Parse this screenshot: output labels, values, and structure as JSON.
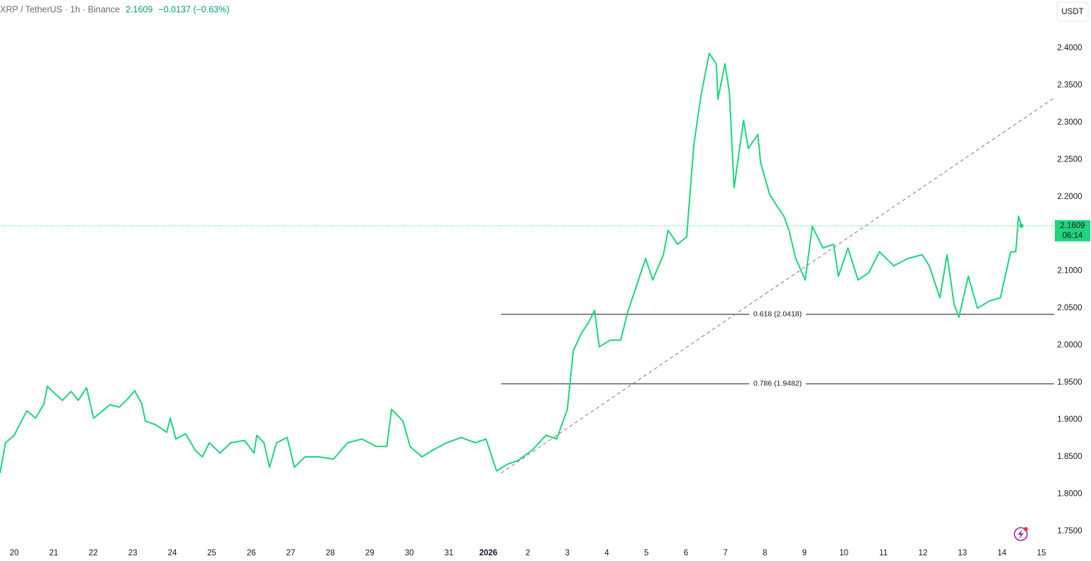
{
  "chart_data": {
    "type": "line",
    "title": "XRP / TetherUS · 1h · Binance",
    "last_price": 2.1609,
    "change": "−0.0137 (−0.63%)",
    "countdown": "06:14",
    "currency": "USDT",
    "xlim": [
      -0.36,
      26.32
    ],
    "ylim": [
      1.7308,
      2.4648
    ],
    "xticks": [
      {
        "value": 0,
        "label": "20"
      },
      {
        "value": 1,
        "label": "21"
      },
      {
        "value": 2,
        "label": "22"
      },
      {
        "value": 3,
        "label": "23"
      },
      {
        "value": 4,
        "label": "24"
      },
      {
        "value": 5,
        "label": "25"
      },
      {
        "value": 6,
        "label": "26"
      },
      {
        "value": 7,
        "label": "27"
      },
      {
        "value": 8,
        "label": "28"
      },
      {
        "value": 9,
        "label": "29"
      },
      {
        "value": 10,
        "label": "30"
      },
      {
        "value": 11,
        "label": "31"
      },
      {
        "value": 12,
        "label": "2026"
      },
      {
        "value": 13,
        "label": "2"
      },
      {
        "value": 14,
        "label": "3"
      },
      {
        "value": 15,
        "label": "4"
      },
      {
        "value": 16,
        "label": "5"
      },
      {
        "value": 17,
        "label": "6"
      },
      {
        "value": 18,
        "label": "7"
      },
      {
        "value": 19,
        "label": "8"
      },
      {
        "value": 20,
        "label": "9"
      },
      {
        "value": 21,
        "label": "10"
      },
      {
        "value": 22,
        "label": "11"
      },
      {
        "value": 23,
        "label": "12"
      },
      {
        "value": 24,
        "label": "13"
      },
      {
        "value": 25,
        "label": "14"
      },
      {
        "value": 26,
        "label": "15"
      }
    ],
    "yticks": [
      {
        "value": 1.75,
        "label": "1.7500"
      },
      {
        "value": 1.8,
        "label": "1.8000"
      },
      {
        "value": 1.85,
        "label": "1.8500"
      },
      {
        "value": 1.9,
        "label": "1.9000"
      },
      {
        "value": 1.95,
        "label": "1.9500"
      },
      {
        "value": 2.0,
        "label": "2.0000"
      },
      {
        "value": 2.05,
        "label": "2.0500"
      },
      {
        "value": 2.1,
        "label": "2.1000"
      },
      {
        "value": 2.15,
        "label": "2.1500"
      },
      {
        "value": 2.2,
        "label": "2.2000"
      },
      {
        "value": 2.25,
        "label": "2.2500"
      },
      {
        "value": 2.3,
        "label": "2.3000"
      },
      {
        "value": 2.35,
        "label": "2.3500"
      },
      {
        "value": 2.4,
        "label": "2.4000"
      }
    ],
    "grid": false,
    "series": [
      {
        "name": "XRP / TetherUS",
        "color": "#1ed47c",
        "x": [
          -0.36,
          -0.22,
          0,
          0.18,
          0.32,
          0.54,
          0.75,
          0.84,
          1.01,
          1.22,
          1.44,
          1.62,
          1.83,
          2.01,
          2.24,
          2.42,
          2.66,
          2.84,
          3.05,
          3.23,
          3.32,
          3.59,
          3.86,
          3.95,
          4.09,
          4.34,
          4.58,
          4.76,
          4.94,
          5.21,
          5.48,
          5.83,
          6.07,
          6.14,
          6.32,
          6.46,
          6.64,
          6.91,
          7.09,
          7.36,
          7.72,
          8.08,
          8.44,
          8.8,
          9.16,
          9.43,
          9.55,
          9.84,
          10.02,
          10.32,
          10.59,
          10.95,
          11.31,
          11.67,
          11.94,
          12.21,
          12.48,
          12.75,
          13.11,
          13.46,
          13.73,
          14.0,
          14.15,
          14.36,
          14.54,
          14.69,
          14.81,
          15.08,
          15.35,
          15.53,
          15.71,
          15.98,
          16.16,
          16.43,
          16.55,
          16.79,
          17.02,
          17.2,
          17.38,
          17.59,
          17.77,
          17.81,
          17.99,
          18.1,
          18.22,
          18.46,
          18.58,
          18.82,
          18.89,
          19.12,
          19.3,
          19.48,
          19.61,
          19.78,
          20.02,
          20.2,
          20.47,
          20.74,
          20.86,
          21.1,
          21.36,
          21.63,
          21.9,
          22.26,
          22.62,
          22.98,
          23.16,
          23.43,
          23.61,
          23.79,
          23.91,
          24.15,
          24.38,
          24.69,
          24.96,
          25.22,
          25.35,
          25.42,
          25.49
        ],
        "values": [
          1.828,
          1.869,
          1.879,
          1.898,
          1.912,
          1.902,
          1.921,
          1.945,
          1.936,
          1.926,
          1.938,
          1.926,
          1.943,
          1.902,
          1.912,
          1.92,
          1.917,
          1.926,
          1.939,
          1.921,
          1.898,
          1.893,
          1.883,
          1.902,
          1.874,
          1.881,
          1.859,
          1.85,
          1.869,
          1.855,
          1.869,
          1.872,
          1.855,
          1.879,
          1.869,
          1.836,
          1.869,
          1.876,
          1.836,
          1.85,
          1.85,
          1.847,
          1.869,
          1.874,
          1.864,
          1.864,
          1.914,
          1.898,
          1.864,
          1.85,
          1.859,
          1.869,
          1.876,
          1.869,
          1.874,
          1.831,
          1.84,
          1.845,
          1.859,
          1.879,
          1.874,
          1.914,
          1.993,
          2.017,
          2.031,
          2.047,
          1.998,
          2.007,
          2.007,
          2.045,
          2.074,
          2.117,
          2.088,
          2.122,
          2.155,
          2.136,
          2.146,
          2.269,
          2.336,
          2.393,
          2.379,
          2.331,
          2.379,
          2.341,
          2.212,
          2.303,
          2.265,
          2.284,
          2.246,
          2.203,
          2.188,
          2.174,
          2.155,
          2.117,
          2.088,
          2.16,
          2.131,
          2.136,
          2.093,
          2.131,
          2.088,
          2.098,
          2.126,
          2.107,
          2.117,
          2.122,
          2.107,
          2.064,
          2.122,
          2.055,
          2.038,
          2.093,
          2.05,
          2.06,
          2.064,
          2.126,
          2.126,
          2.174,
          2.161
        ]
      }
    ],
    "fib_levels": [
      {
        "label": "0.618 (2.0418)",
        "value": 2.0418,
        "x_start": 12.32
      },
      {
        "label": "0.786 (1.9482)",
        "value": 1.9482,
        "x_start": 12.32
      }
    ],
    "trendline": {
      "x": [
        12.32,
        26.32
      ],
      "y": [
        1.828,
        2.333
      ]
    }
  }
}
